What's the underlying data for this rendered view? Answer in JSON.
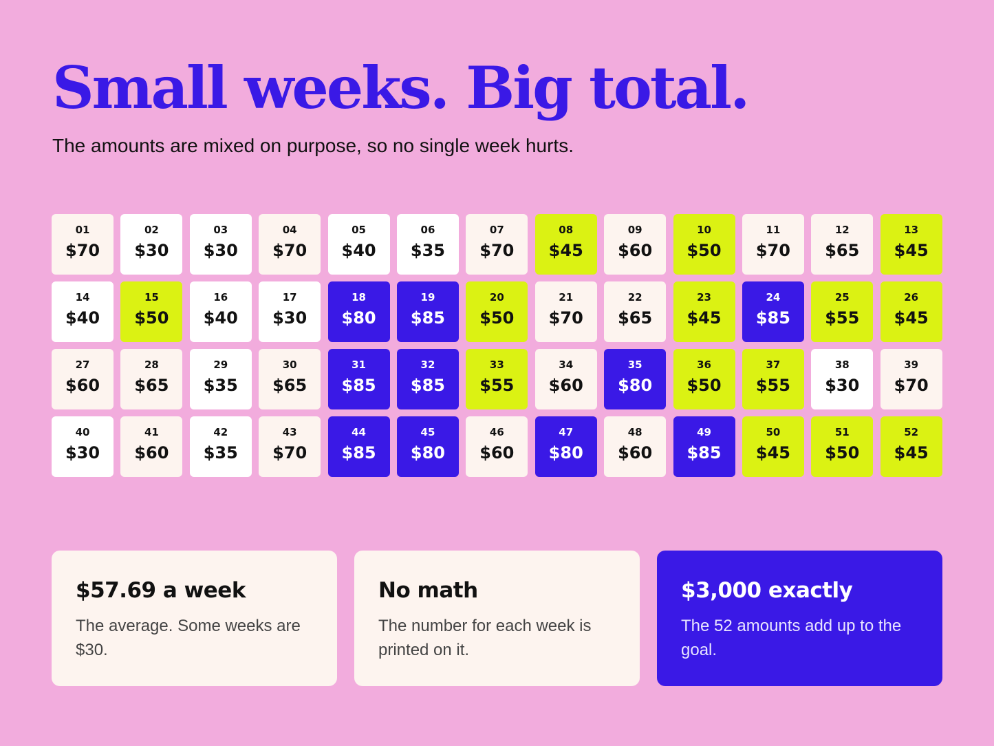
{
  "header": {
    "title": "Small weeks. Big total.",
    "subtitle": "The amounts are mixed on purpose, so no single week hurts."
  },
  "colors": {
    "background": "#F2ACDD",
    "accent_blue": "#3A19E6",
    "accent_lime": "#DBF213",
    "tile_white": "#FFFFFF",
    "tile_cream": "#FDF4EF"
  },
  "weeks": [
    {
      "week": "01",
      "amount": "$70",
      "color": "cream"
    },
    {
      "week": "02",
      "amount": "$30",
      "color": "white"
    },
    {
      "week": "03",
      "amount": "$30",
      "color": "white"
    },
    {
      "week": "04",
      "amount": "$70",
      "color": "cream"
    },
    {
      "week": "05",
      "amount": "$40",
      "color": "white"
    },
    {
      "week": "06",
      "amount": "$35",
      "color": "white"
    },
    {
      "week": "07",
      "amount": "$70",
      "color": "cream"
    },
    {
      "week": "08",
      "amount": "$45",
      "color": "lime"
    },
    {
      "week": "09",
      "amount": "$60",
      "color": "cream"
    },
    {
      "week": "10",
      "amount": "$50",
      "color": "lime"
    },
    {
      "week": "11",
      "amount": "$70",
      "color": "cream"
    },
    {
      "week": "12",
      "amount": "$65",
      "color": "cream"
    },
    {
      "week": "13",
      "amount": "$45",
      "color": "lime"
    },
    {
      "week": "14",
      "amount": "$40",
      "color": "white"
    },
    {
      "week": "15",
      "amount": "$50",
      "color": "lime"
    },
    {
      "week": "16",
      "amount": "$40",
      "color": "white"
    },
    {
      "week": "17",
      "amount": "$30",
      "color": "white"
    },
    {
      "week": "18",
      "amount": "$80",
      "color": "blue"
    },
    {
      "week": "19",
      "amount": "$85",
      "color": "blue"
    },
    {
      "week": "20",
      "amount": "$50",
      "color": "lime"
    },
    {
      "week": "21",
      "amount": "$70",
      "color": "cream"
    },
    {
      "week": "22",
      "amount": "$65",
      "color": "cream"
    },
    {
      "week": "23",
      "amount": "$45",
      "color": "lime"
    },
    {
      "week": "24",
      "amount": "$85",
      "color": "blue"
    },
    {
      "week": "25",
      "amount": "$55",
      "color": "lime"
    },
    {
      "week": "26",
      "amount": "$45",
      "color": "lime"
    },
    {
      "week": "27",
      "amount": "$60",
      "color": "cream"
    },
    {
      "week": "28",
      "amount": "$65",
      "color": "cream"
    },
    {
      "week": "29",
      "amount": "$35",
      "color": "white"
    },
    {
      "week": "30",
      "amount": "$65",
      "color": "cream"
    },
    {
      "week": "31",
      "amount": "$85",
      "color": "blue"
    },
    {
      "week": "32",
      "amount": "$85",
      "color": "blue"
    },
    {
      "week": "33",
      "amount": "$55",
      "color": "lime"
    },
    {
      "week": "34",
      "amount": "$60",
      "color": "cream"
    },
    {
      "week": "35",
      "amount": "$80",
      "color": "blue"
    },
    {
      "week": "36",
      "amount": "$50",
      "color": "lime"
    },
    {
      "week": "37",
      "amount": "$55",
      "color": "lime"
    },
    {
      "week": "38",
      "amount": "$30",
      "color": "white"
    },
    {
      "week": "39",
      "amount": "$70",
      "color": "cream"
    },
    {
      "week": "40",
      "amount": "$30",
      "color": "white"
    },
    {
      "week": "41",
      "amount": "$60",
      "color": "cream"
    },
    {
      "week": "42",
      "amount": "$35",
      "color": "white"
    },
    {
      "week": "43",
      "amount": "$70",
      "color": "cream"
    },
    {
      "week": "44",
      "amount": "$85",
      "color": "blue"
    },
    {
      "week": "45",
      "amount": "$80",
      "color": "blue"
    },
    {
      "week": "46",
      "amount": "$60",
      "color": "cream"
    },
    {
      "week": "47",
      "amount": "$80",
      "color": "blue"
    },
    {
      "week": "48",
      "amount": "$60",
      "color": "cream"
    },
    {
      "week": "49",
      "amount": "$85",
      "color": "blue"
    },
    {
      "week": "50",
      "amount": "$45",
      "color": "lime"
    },
    {
      "week": "51",
      "amount": "$50",
      "color": "lime"
    },
    {
      "week": "52",
      "amount": "$45",
      "color": "lime"
    }
  ],
  "cards": [
    {
      "heading": "$57.69 a week",
      "body": "The average. Some weeks are $30.",
      "style": "light"
    },
    {
      "heading": "No math",
      "body": "The number for each week is printed on it.",
      "style": "light"
    },
    {
      "heading": "$3,000 exactly",
      "body": "The 52 amounts add up to the goal.",
      "style": "dark"
    }
  ]
}
